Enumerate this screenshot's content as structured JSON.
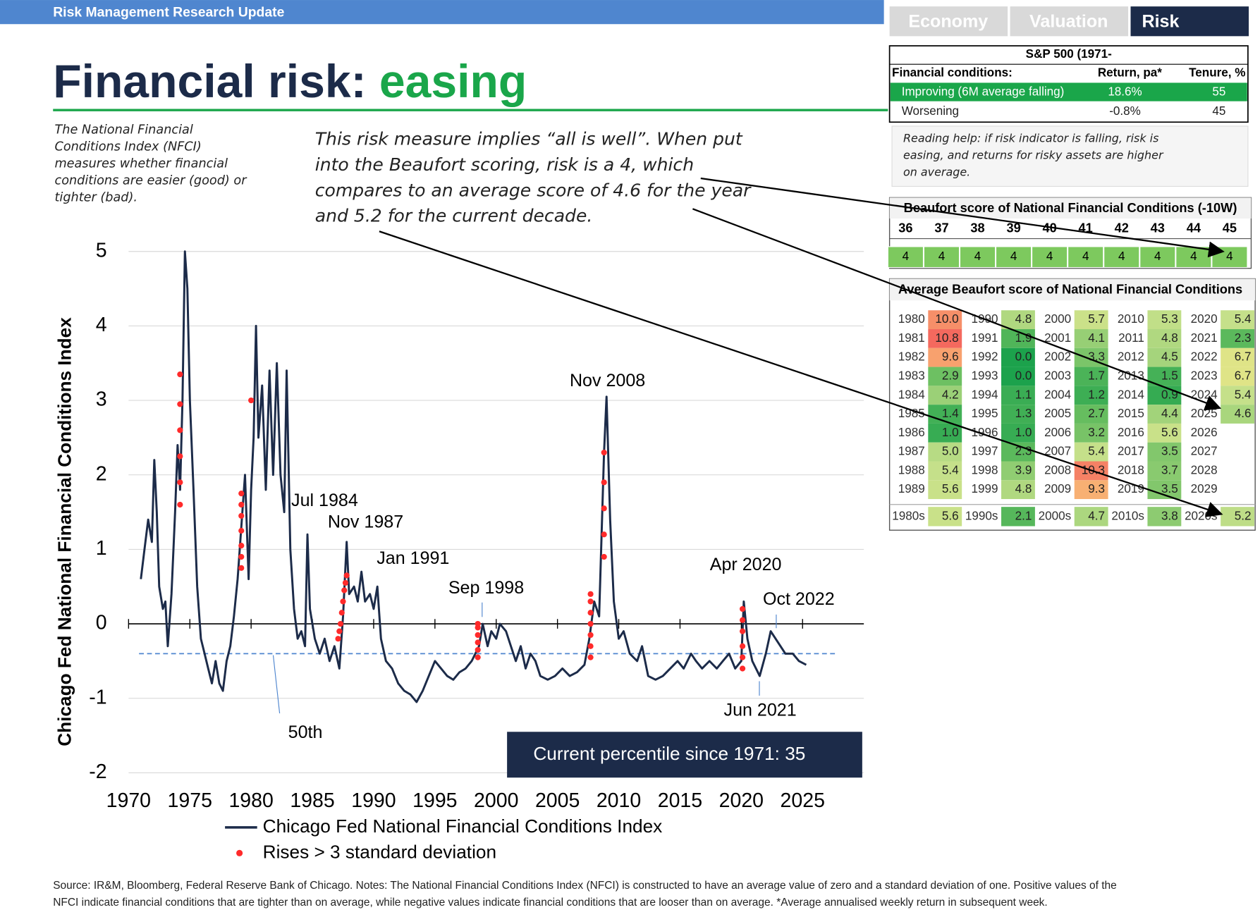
{
  "header": {
    "title": "Risk Management Research Update"
  },
  "tabs": [
    "Economy",
    "Valuation",
    "Risk"
  ],
  "active_tab": 2,
  "title": {
    "main": "Financial risk:",
    "highlight": "easing"
  },
  "description": [
    "The National Financial",
    "Conditions Index (NFCI)",
    "measures whether financial",
    "conditions are easier (good) or",
    "tighter (bad)."
  ],
  "annotation": [
    "This risk measure implies “all is well”. When put",
    "into the Beaufort scoring, risk is a 4, which",
    "compares to an average score of 4.6 for the year",
    "and 5.2 for the current decade."
  ],
  "chart_data": {
    "type": "line",
    "ylabel": "Chicago Fed National Financial Conditions Index",
    "xlim": [
      1970,
      2030
    ],
    "xticks": [
      1970,
      1975,
      1980,
      1985,
      1990,
      1995,
      2000,
      2005,
      2010,
      2015,
      2020,
      2025
    ],
    "ylim": [
      -2,
      5
    ],
    "yticks": [
      -2,
      -1,
      0,
      1,
      2,
      3,
      4,
      5
    ],
    "grid": true,
    "series": [
      {
        "name": "Chicago Fed National Financial Conditions Index",
        "color": "#1c2b49",
        "x": [
          1971.0,
          1971.3,
          1971.6,
          1971.9,
          1972.1,
          1972.3,
          1972.5,
          1972.8,
          1973.0,
          1973.2,
          1973.5,
          1973.8,
          1974.0,
          1974.2,
          1974.4,
          1974.6,
          1974.8,
          1975.0,
          1975.3,
          1975.6,
          1975.9,
          1976.2,
          1976.5,
          1976.8,
          1977.1,
          1977.4,
          1977.7,
          1978.0,
          1978.3,
          1978.6,
          1978.9,
          1979.2,
          1979.5,
          1979.8,
          1980.0,
          1980.2,
          1980.4,
          1980.6,
          1980.9,
          1981.2,
          1981.5,
          1981.8,
          1982.1,
          1982.4,
          1982.7,
          1982.9,
          1983.2,
          1983.5,
          1983.8,
          1984.1,
          1984.4,
          1984.6,
          1984.8,
          1985.2,
          1985.6,
          1986.0,
          1986.4,
          1986.8,
          1987.2,
          1987.5,
          1987.8,
          1988.0,
          1988.4,
          1988.7,
          1989.0,
          1989.3,
          1989.7,
          1990.0,
          1990.3,
          1990.6,
          1991.0,
          1991.5,
          1992.0,
          1992.5,
          1993.0,
          1993.5,
          1994.0,
          1994.5,
          1995.0,
          1995.5,
          1996.0,
          1996.5,
          1997.0,
          1997.5,
          1998.0,
          1998.6,
          1998.9,
          1999.3,
          1999.6,
          2000.0,
          2000.3,
          2000.8,
          2001.2,
          2001.6,
          2002.0,
          2002.4,
          2002.8,
          2003.2,
          2003.6,
          2004.2,
          2004.8,
          2005.4,
          2006.0,
          2006.6,
          2007.2,
          2007.6,
          2008.0,
          2008.4,
          2008.8,
          2009.0,
          2009.3,
          2009.6,
          2010.0,
          2010.4,
          2010.9,
          2011.5,
          2011.9,
          2012.4,
          2013.0,
          2013.6,
          2014.2,
          2014.8,
          2015.3,
          2015.9,
          2016.3,
          2016.8,
          2017.4,
          2018.0,
          2018.5,
          2019.0,
          2019.5,
          2020.0,
          2020.2,
          2020.5,
          2020.9,
          2021.5,
          2022.0,
          2022.4,
          2022.8,
          2023.2,
          2023.6,
          2024.2,
          2024.7,
          2025.3
        ],
        "values": [
          0.6,
          1.0,
          1.4,
          1.1,
          2.2,
          1.5,
          0.5,
          0.2,
          0.3,
          -0.3,
          0.4,
          1.5,
          2.4,
          1.8,
          3.0,
          5.0,
          4.5,
          3.0,
          1.8,
          0.5,
          -0.2,
          -0.4,
          -0.6,
          -0.8,
          -0.5,
          -0.8,
          -0.9,
          -0.5,
          -0.3,
          0.1,
          0.6,
          1.3,
          2.0,
          0.6,
          1.8,
          2.5,
          4.0,
          2.5,
          3.2,
          1.8,
          3.4,
          2.0,
          3.5,
          2.0,
          1.5,
          3.4,
          1.0,
          0.2,
          -0.2,
          -0.1,
          -0.3,
          1.2,
          0.2,
          -0.2,
          -0.4,
          -0.2,
          -0.5,
          -0.3,
          -0.6,
          0.1,
          1.1,
          0.4,
          0.5,
          0.3,
          0.7,
          0.3,
          0.4,
          0.2,
          0.5,
          -0.2,
          -0.5,
          -0.6,
          -0.8,
          -0.9,
          -0.95,
          -1.05,
          -0.9,
          -0.7,
          -0.5,
          -0.6,
          -0.7,
          -0.75,
          -0.65,
          -0.6,
          -0.5,
          -0.3,
          0.0,
          -0.3,
          -0.1,
          -0.2,
          0.0,
          -0.1,
          -0.3,
          -0.5,
          -0.3,
          -0.6,
          -0.4,
          -0.5,
          -0.7,
          -0.75,
          -0.7,
          -0.6,
          -0.7,
          -0.65,
          -0.55,
          -0.2,
          0.3,
          0.1,
          2.3,
          3.05,
          1.4,
          0.3,
          -0.2,
          -0.1,
          -0.4,
          -0.5,
          -0.3,
          -0.7,
          -0.75,
          -0.7,
          -0.6,
          -0.5,
          -0.6,
          -0.4,
          -0.5,
          -0.6,
          -0.5,
          -0.6,
          -0.5,
          -0.4,
          -0.6,
          -0.5,
          0.3,
          -0.2,
          -0.5,
          -0.7,
          -0.4,
          -0.1,
          -0.2,
          -0.3,
          -0.4,
          -0.4,
          -0.5,
          -0.55
        ]
      },
      {
        "name": "Rises > 3 standard deviation",
        "color": "#ff2a2a",
        "type": "scatter",
        "x": [
          1974.2,
          1974.2,
          1974.2,
          1974.2,
          1974.2,
          1974.2,
          1979.2,
          1979.2,
          1979.2,
          1979.2,
          1979.2,
          1979.2,
          1979.2,
          1980.0,
          1987.1,
          1987.2,
          1987.3,
          1987.4,
          1987.5,
          1987.6,
          1987.7,
          1987.8,
          1998.5,
          1998.5,
          1998.5,
          1998.5,
          1998.5,
          1998.5,
          2007.7,
          2007.7,
          2007.7,
          2007.7,
          2007.7,
          2007.7,
          2007.7,
          2008.8,
          2008.8,
          2008.8,
          2008.8,
          2008.8,
          2020.1,
          2020.1,
          2020.1,
          2020.1,
          2020.1,
          2020.1
        ],
        "values": [
          1.6,
          1.9,
          2.25,
          2.6,
          2.95,
          3.35,
          0.75,
          0.9,
          1.05,
          1.25,
          1.45,
          1.6,
          1.75,
          3.0,
          -0.2,
          -0.1,
          0.0,
          0.15,
          0.3,
          0.45,
          0.55,
          0.65,
          -0.45,
          -0.35,
          -0.25,
          -0.15,
          -0.05,
          0.0,
          -0.45,
          -0.3,
          -0.15,
          0.0,
          0.15,
          0.3,
          0.4,
          0.9,
          1.2,
          1.55,
          1.9,
          2.3,
          -0.6,
          -0.45,
          -0.3,
          -0.1,
          0.05,
          0.2
        ]
      }
    ],
    "reference_line": {
      "value": -0.4,
      "label": "50th",
      "color": "#4f86cf"
    },
    "annotations": [
      "Jul 1984",
      "Nov 1987",
      "Jan 1991",
      "Sep 1998",
      "Nov 2008",
      "Apr 2020",
      "Oct 2022",
      "Jun 2021"
    ],
    "callout": "Current percentile since 1971: 35"
  },
  "sp500_table": {
    "title": "S&P 500 (1971-",
    "headers": [
      "Financial conditions:",
      "Return, pa*",
      "Tenure, %"
    ],
    "rows": [
      [
        "Improving (6M average falling)",
        "18.6%",
        "55"
      ],
      [
        "Worsening",
        "-0.8%",
        "45"
      ]
    ],
    "highlight_color": "#1aa64a"
  },
  "reading_help": [
    "Reading help: if risk indicator is falling, risk is",
    "easing, and returns for risky assets are higher",
    "on average."
  ],
  "beaufort_table": {
    "title": "Beaufort score of National Financial Conditions (-10W)",
    "weeks": [
      36,
      37,
      38,
      39,
      40,
      41,
      42,
      43,
      44,
      45
    ],
    "scores": [
      4,
      4,
      4,
      4,
      4,
      4,
      4,
      4,
      4,
      4
    ],
    "color": "#7dc95e"
  },
  "average_table": {
    "title": "Average Beaufort score of National Financial Conditions",
    "color_scale": [
      "#1ca24c",
      "#66bd5f",
      "#c5e08a",
      "#fce883",
      "#f4695e"
    ],
    "decades": [
      {
        "years": [
          "1980",
          "1981",
          "1982",
          "1983",
          "1984",
          "1985",
          "1986",
          "1987",
          "1988",
          "1989"
        ],
        "scores": [
          "10.0",
          "10.8",
          "9.6",
          "2.9",
          "4.2",
          "1.4",
          "1.0",
          "5.0",
          "5.4",
          "5.6"
        ]
      },
      {
        "years": [
          "1990",
          "1991",
          "1992",
          "1993",
          "1994",
          "1995",
          "1996",
          "1997",
          "1998",
          "1999"
        ],
        "scores": [
          "4.8",
          "1.9",
          "0.0",
          "0.0",
          "1.1",
          "1.3",
          "1.0",
          "2.3",
          "3.9",
          "4.8"
        ]
      },
      {
        "years": [
          "2000",
          "2001",
          "2002",
          "2003",
          "2004",
          "2005",
          "2006",
          "2007",
          "2008",
          "2009"
        ],
        "scores": [
          "5.7",
          "4.1",
          "3.3",
          "1.7",
          "1.2",
          "2.7",
          "3.2",
          "5.4",
          "10.3",
          "9.3"
        ]
      },
      {
        "years": [
          "2010",
          "2011",
          "2012",
          "2013",
          "2014",
          "2015",
          "2016",
          "2017",
          "2018",
          "2019"
        ],
        "scores": [
          "5.3",
          "4.8",
          "4.5",
          "1.5",
          "0.9",
          "4.4",
          "5.6",
          "3.5",
          "3.7",
          "3.5"
        ]
      },
      {
        "years": [
          "2020",
          "2021",
          "2022",
          "2023",
          "2024",
          "2025",
          "2026",
          "2027",
          "2028",
          "2029"
        ],
        "scores": [
          "5.4",
          "2.3",
          "6.7",
          "6.7",
          "5.4",
          "4.6",
          null,
          null,
          null,
          null
        ]
      }
    ],
    "summary": [
      {
        "label": "1980s",
        "score": "5.6"
      },
      {
        "label": "1990s",
        "score": "2.1"
      },
      {
        "label": "2000s",
        "score": "4.7"
      },
      {
        "label": "2010s",
        "score": "3.8"
      },
      {
        "label": "2020s",
        "score": "5.2"
      }
    ]
  },
  "source": [
    "Source: IR&M, Bloomberg, Federal Reserve Bank of Chicago. Notes: The National Financial Conditions Index (NFCI) is constructed to have an average value of zero and a standard deviation of one. Positive values of the",
    "NFCI indicate financial conditions that are tighter than on average, while negative values indicate financial conditions that are looser than on average. *Average annualised weekly return in subsequent week."
  ]
}
